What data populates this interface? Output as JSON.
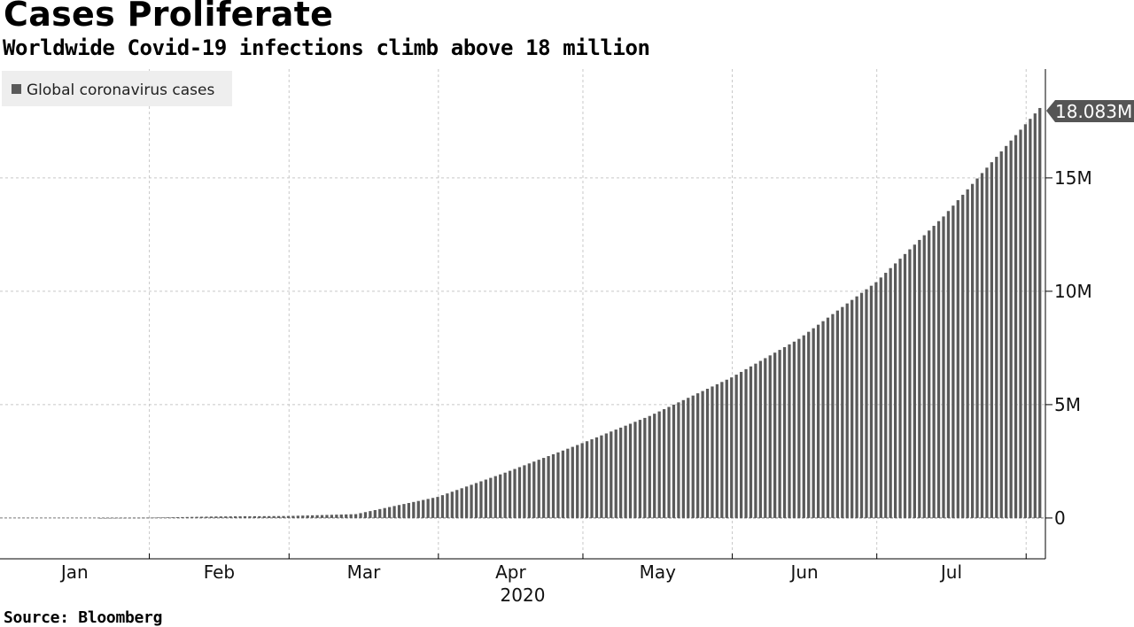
{
  "header": {
    "title": "Cases Proliferate",
    "subtitle": "Worldwide Covid-19 infections climb above 18 million"
  },
  "footer": {
    "source": "Source: Bloomberg"
  },
  "colors": {
    "bar": "#5a5a5a",
    "badge": "#555555",
    "grid": "#c8c8c8",
    "legend_bg": "#eeeeee"
  },
  "chart_data": {
    "type": "bar",
    "title": "Cases Proliferate",
    "subtitle": "Worldwide Covid-19 infections climb above 18 million",
    "year_label": "2020",
    "x_start": "2020-01-22",
    "x_end": "2020-08-04",
    "x_range": [
      "2020-01-01",
      "2020-08-05"
    ],
    "x_tick_labels": [
      "Jan",
      "Feb",
      "Mar",
      "Apr",
      "May",
      "Jun",
      "Jul"
    ],
    "y_axis": {
      "side": "right",
      "ylim": [
        -1800000,
        19800000
      ],
      "ticks": [
        0,
        5000000,
        10000000,
        15000000
      ],
      "tick_labels": [
        "0",
        "5M",
        "10M",
        "15M"
      ]
    },
    "grid": true,
    "legend": {
      "position": "top-left",
      "entries": [
        "Global coronavirus cases"
      ]
    },
    "series": [
      {
        "name": "Global coronavirus cases",
        "last_value_label": "18.083M",
        "points": [
          [
            "2020-01-22",
            0
          ],
          [
            "2020-02-01",
            12000
          ],
          [
            "2020-02-15",
            67000
          ],
          [
            "2020-03-01",
            88000
          ],
          [
            "2020-03-15",
            170000
          ],
          [
            "2020-04-01",
            930000
          ],
          [
            "2020-04-15",
            2000000
          ],
          [
            "2020-05-01",
            3300000
          ],
          [
            "2020-05-15",
            4500000
          ],
          [
            "2020-06-01",
            6200000
          ],
          [
            "2020-06-15",
            7900000
          ],
          [
            "2020-07-01",
            10400000
          ],
          [
            "2020-07-15",
            13300000
          ],
          [
            "2020-08-04",
            18083000
          ]
        ]
      }
    ]
  }
}
